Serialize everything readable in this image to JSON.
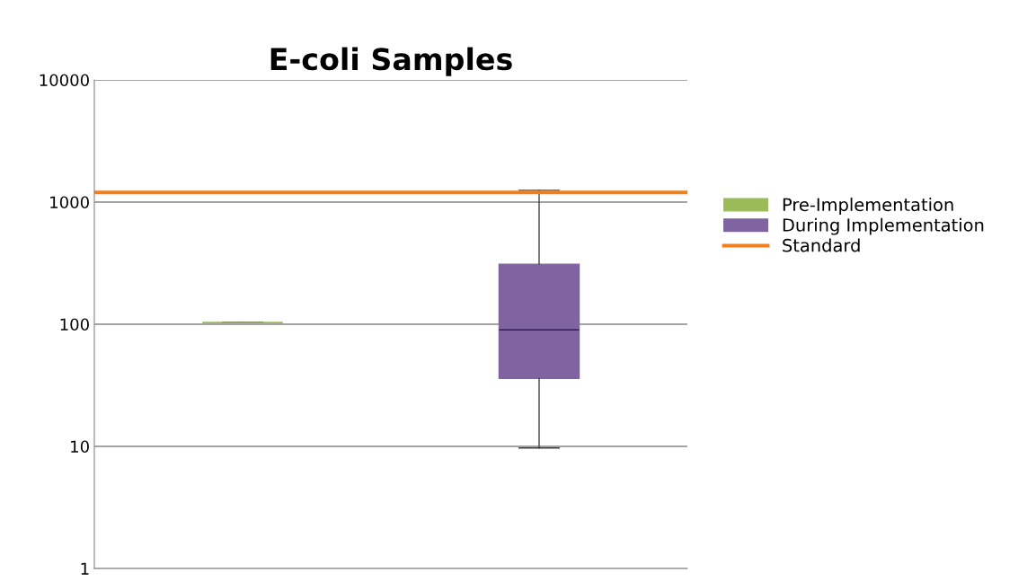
{
  "chart_data": {
    "type": "box",
    "title": "E-coli Samples",
    "categories": [
      null,
      null
    ],
    "series": [
      {
        "name": "Pre-Implementation",
        "color": "#9bbb59",
        "boxes": [
          {
            "low": 103,
            "q1": 103,
            "median": 103,
            "q3": 103,
            "high": 103
          },
          null
        ]
      },
      {
        "name": "During Implementation",
        "color": "#8064a2",
        "boxes": [
          null,
          {
            "low": 9.7,
            "q1": 36,
            "median": 90,
            "q3": 310,
            "high": 1250
          }
        ]
      }
    ],
    "ref_lines": [
      {
        "axis": "y",
        "value": 1200,
        "label": "Standard",
        "color": "#f07f1e",
        "line_style": "solid"
      }
    ],
    "log": "y",
    "ylim": [
      1,
      10000
    ],
    "yticks": [
      1,
      10,
      100,
      1000,
      10000
    ],
    "grid": "y",
    "legend": "right",
    "tick_labels": "y"
  }
}
